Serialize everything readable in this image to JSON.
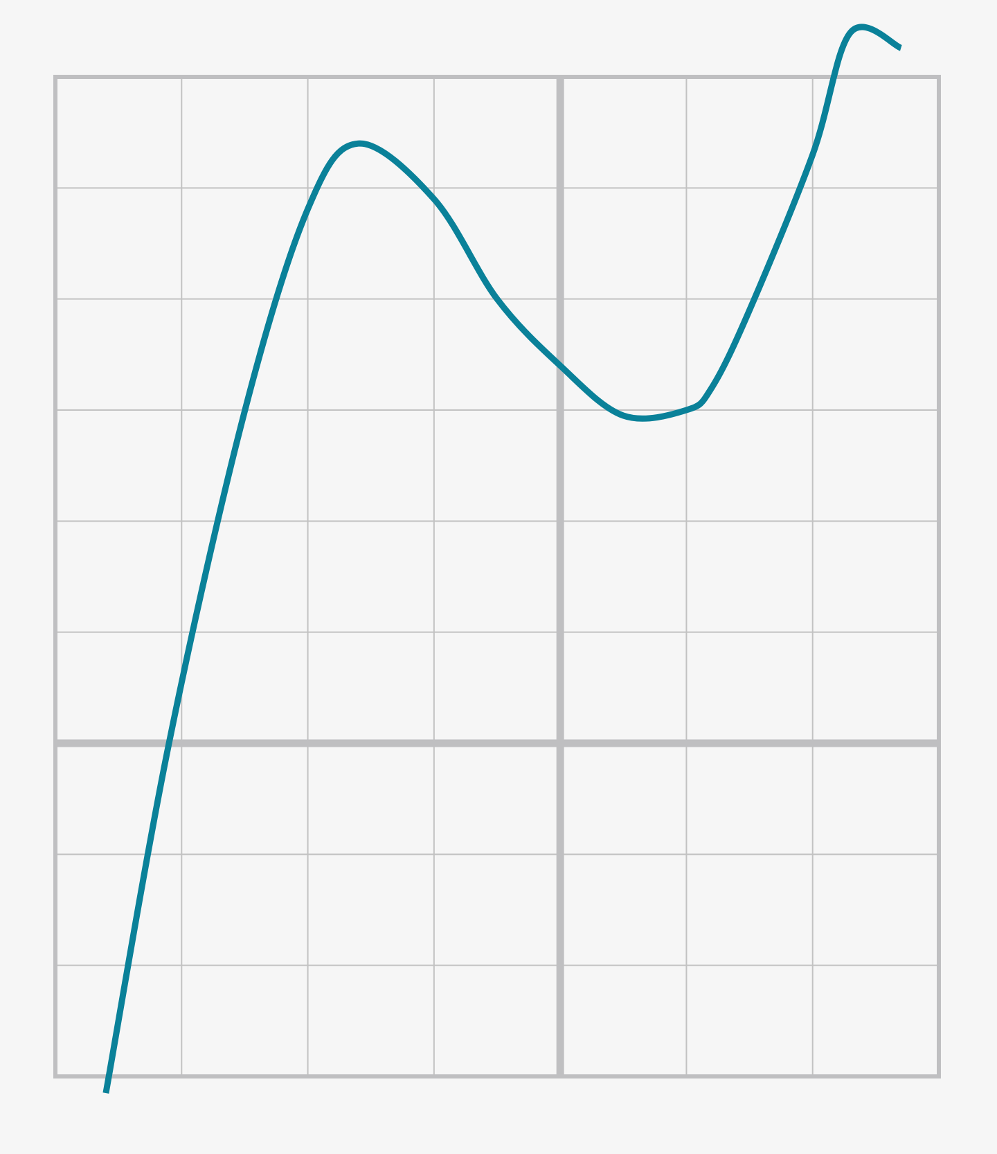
{
  "colors": {
    "background": "#f6f6f6",
    "grid": "#c2c2c2",
    "axis": "#bfbfc1",
    "curve": "#0a8199"
  },
  "chart_data": {
    "type": "line",
    "title": "",
    "xlabel": "",
    "ylabel": "",
    "xlim": [
      -4,
      3
    ],
    "ylim": [
      -3,
      6
    ],
    "grid": true,
    "legend": "none",
    "series": [
      {
        "x": [
          -3.6,
          -3.1,
          -2.5,
          -2.0,
          -1.6,
          -1.0,
          -0.5,
          0.0,
          0.5,
          1.0,
          1.2,
          1.5,
          2.0,
          2.3,
          2.7
        ],
        "y": [
          -3.15,
          0.0,
          2.99,
          4.81,
          5.4,
          4.9,
          4.0,
          3.4,
          2.95,
          3.0,
          3.2,
          3.9,
          5.3,
          6.4,
          6.26
        ]
      }
    ]
  }
}
